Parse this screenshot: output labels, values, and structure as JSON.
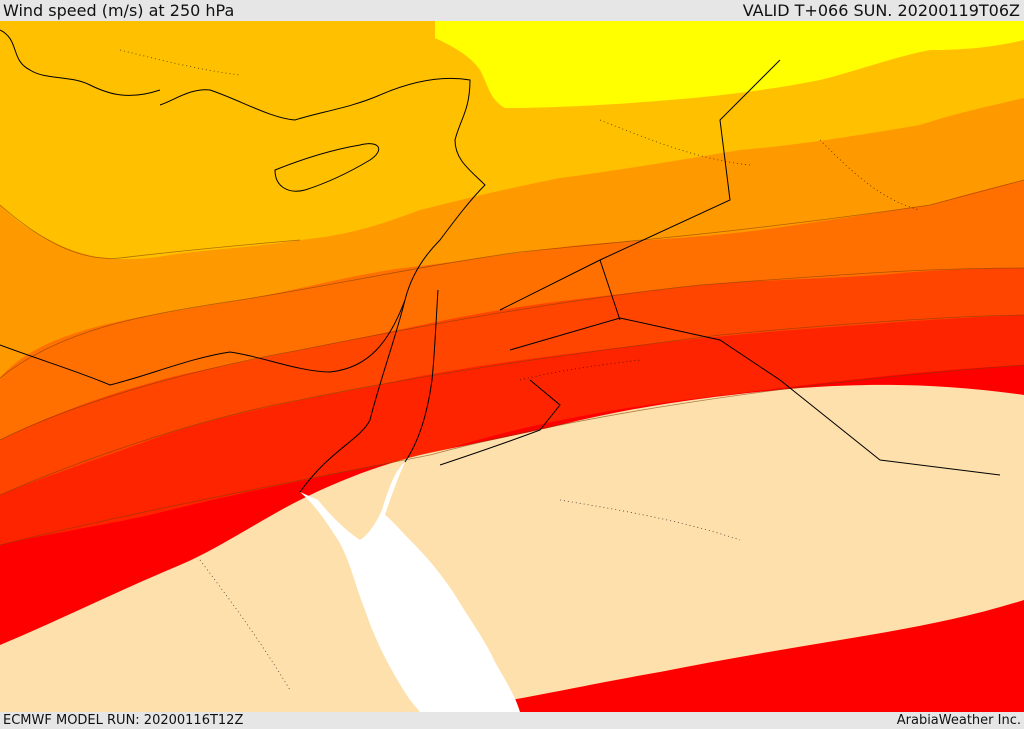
{
  "header": {
    "title": "Wind speed (m/s) at 250 hPa",
    "valid": "VALID T+066 SUN. 20200119T06Z"
  },
  "footer": {
    "model_run": "ECMWF MODEL RUN: 20200116T12Z",
    "credit": "ArabiaWeather Inc."
  },
  "map": {
    "field": "wind speed at 250 hPa",
    "units": "m/s",
    "colors": {
      "band_1": "#ffff00",
      "band_2": "#ffc000",
      "band_3": "#ff9900",
      "band_4": "#ff7000",
      "band_5": "#ff4500",
      "band_6": "#ff2400",
      "band_7": "#ff0000",
      "land_low_wind": "#fde0ac",
      "sea_low_wind": "#ffffff",
      "coastline": "#000000"
    }
  }
}
